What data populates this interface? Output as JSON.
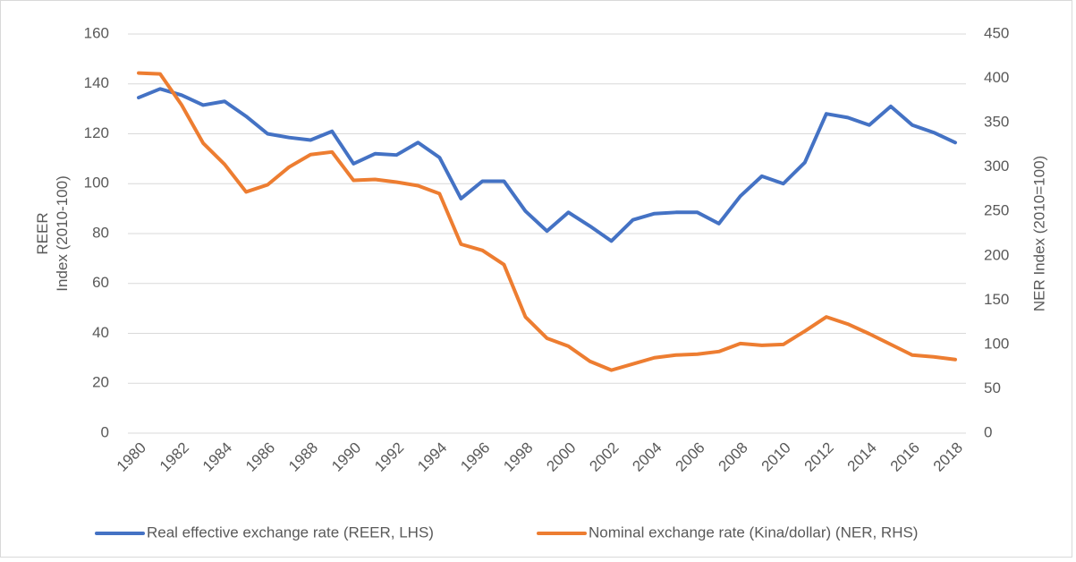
{
  "chart_data": {
    "type": "line",
    "categories": [
      "1980",
      null,
      "1982",
      null,
      "1984",
      null,
      "1986",
      null,
      "1988",
      null,
      "1990",
      null,
      "1992",
      null,
      "1994",
      null,
      "1996",
      null,
      "1998",
      null,
      "2000",
      null,
      "2002",
      null,
      "2004",
      null,
      "2006",
      null,
      "2008",
      null,
      "2010",
      null,
      "2012",
      null,
      "2014",
      null,
      "2016",
      null,
      "2018"
    ],
    "series": [
      {
        "name": "Real effective exchange rate (REER, LHS)",
        "color": "#4472c4",
        "axis": "y",
        "values": [
          134.5,
          138,
          135.5,
          131.5,
          133,
          127,
          120,
          118.5,
          117.5,
          121,
          108,
          112,
          111.5,
          116.5,
          110.5,
          94,
          101,
          101,
          89,
          81,
          88.5,
          83,
          77,
          85.5,
          88,
          88.5,
          88.5,
          84,
          95,
          103,
          100,
          108.5,
          128,
          126.5,
          123.5,
          131,
          123.5,
          120.5,
          116.5
        ]
      },
      {
        "name": "Nominal exchange rate (Kina/dollar) (NER, RHS)",
        "color": "#ed7d31",
        "axis": "y2",
        "values": [
          406,
          405,
          370,
          327,
          303,
          272,
          280,
          300,
          314,
          317,
          285,
          286,
          283,
          279,
          270,
          213,
          206,
          190,
          131,
          107,
          98,
          81,
          71,
          78,
          85,
          88,
          89,
          92,
          101,
          99,
          100,
          115,
          131,
          123,
          112,
          100,
          88,
          86,
          83
        ]
      }
    ],
    "ylabel": [
      "REER",
      "Index (2010-100)"
    ],
    "y2label": "NER Index (2010=100)",
    "ylim": [
      0,
      160
    ],
    "yticks": [
      0,
      20,
      40,
      60,
      80,
      100,
      120,
      140,
      160
    ],
    "y2lim": [
      0,
      450
    ],
    "y2ticks": [
      0,
      50,
      100,
      150,
      200,
      250,
      300,
      350,
      400,
      450
    ],
    "grid": true,
    "legend": "bottom"
  }
}
